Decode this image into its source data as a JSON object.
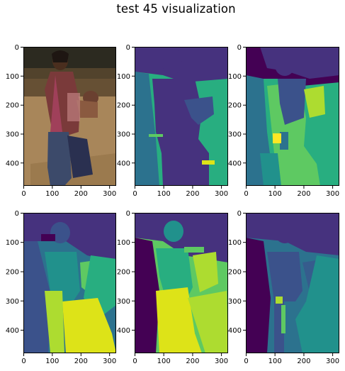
{
  "figure": {
    "title": "test 45 visualization"
  },
  "panels": [
    {
      "kind": "photo",
      "xticks": [
        "0",
        "100",
        "200",
        "300"
      ],
      "yticks": [
        "0",
        "100",
        "200",
        "300",
        "400"
      ]
    },
    {
      "kind": "segmentation",
      "xticks": [
        "0",
        "100",
        "200",
        "300"
      ],
      "yticks": [
        "0",
        "100",
        "200",
        "300",
        "400"
      ]
    },
    {
      "kind": "segmentation",
      "xticks": [
        "0",
        "100",
        "200",
        "300"
      ],
      "yticks": [
        "0",
        "100",
        "200",
        "300",
        "400"
      ]
    },
    {
      "kind": "segmentation",
      "xticks": [
        "0",
        "100",
        "200",
        "300"
      ],
      "yticks": [
        "0",
        "100",
        "200",
        "300",
        "400"
      ]
    },
    {
      "kind": "segmentation",
      "xticks": [
        "0",
        "100",
        "200",
        "300"
      ],
      "yticks": [
        "0",
        "100",
        "200",
        "300",
        "400"
      ]
    },
    {
      "kind": "segmentation",
      "xticks": [
        "0",
        "100",
        "200",
        "300"
      ],
      "yticks": [
        "0",
        "100",
        "200",
        "300",
        "400"
      ]
    }
  ],
  "colors": {
    "deep_purple": "#440154",
    "purple": "#46327e",
    "indigo": "#3b528b",
    "blue": "#365c8d",
    "teal": "#2c728e",
    "teal_green": "#21918c",
    "green": "#28ae80",
    "light_green": "#5ec962",
    "lime": "#addc30",
    "yellow": "#dde318",
    "bright_yellow": "#fde725"
  }
}
